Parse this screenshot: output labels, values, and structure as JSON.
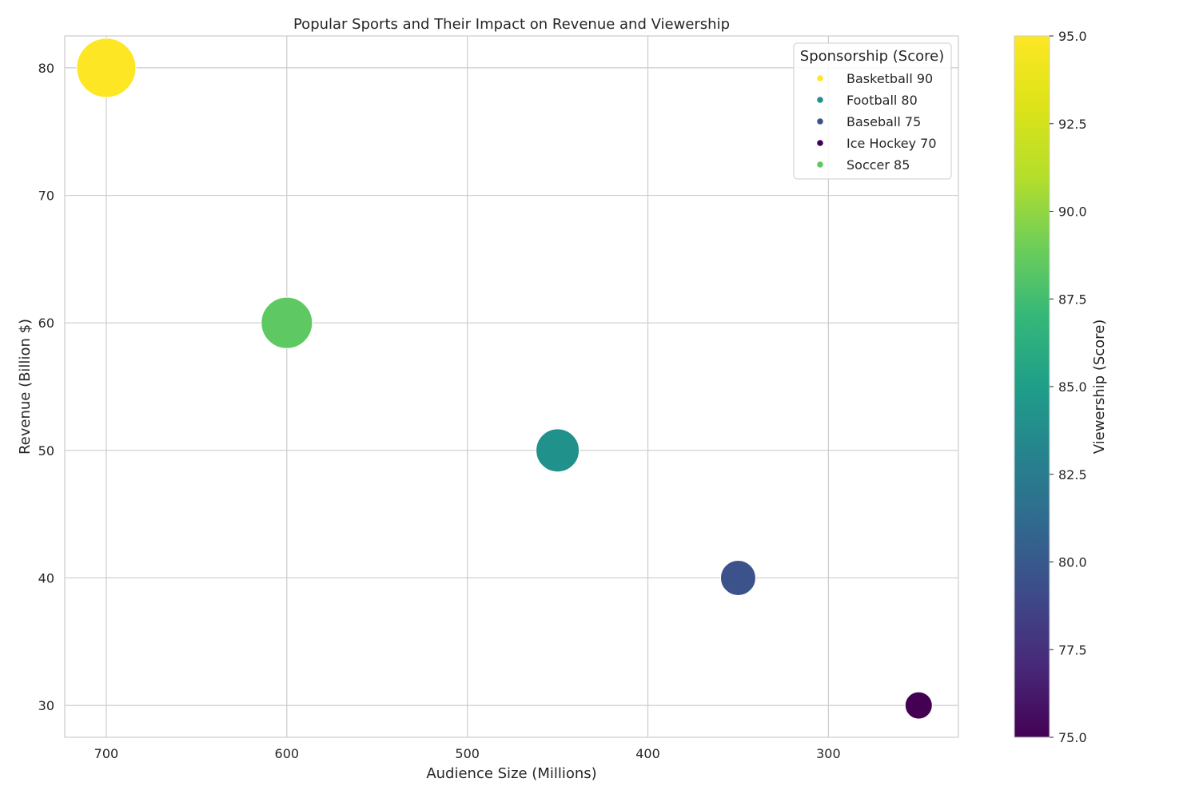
{
  "chart_data": {
    "type": "scatter",
    "title": "Popular Sports and Their Impact on Revenue and Viewership",
    "xlabel": "Audience Size (Millions)",
    "ylabel": "Revenue (Billion $)",
    "xlim": [
      723,
      228
    ],
    "ylim": [
      27.5,
      82.5
    ],
    "x_inverted": true,
    "x_ticks": [
      700,
      600,
      500,
      400,
      300
    ],
    "y_ticks": [
      30,
      40,
      50,
      60,
      70,
      80
    ],
    "grid": true,
    "points": [
      {
        "name": "Basketball",
        "x": 700,
        "y": 80,
        "sponsorship": 90,
        "viewership": 95,
        "color": "#fde725"
      },
      {
        "name": "Football",
        "x": 450,
        "y": 50,
        "sponsorship": 80,
        "viewership": 85,
        "color": "#21918c"
      },
      {
        "name": "Baseball",
        "x": 350,
        "y": 40,
        "sponsorship": 75,
        "viewership": 80,
        "color": "#3b528b"
      },
      {
        "name": "Ice Hockey",
        "x": 250,
        "y": 30,
        "sponsorship": 70,
        "viewership": 75,
        "color": "#440154"
      },
      {
        "name": "Soccer",
        "x": 600,
        "y": 60,
        "sponsorship": 85,
        "viewership": 90,
        "color": "#5ec962"
      }
    ],
    "legend": {
      "title": "Sponsorship (Score)",
      "placement": "top-right",
      "entries": [
        "Basketball 90",
        "Football 80",
        "Baseball 75",
        "Ice Hockey 70",
        "Soccer 85"
      ]
    },
    "colorbar": {
      "label": "Viewership (Score)",
      "colormap": "viridis",
      "range": [
        75,
        95
      ],
      "ticks": [
        "75.0",
        "77.5",
        "80.0",
        "82.5",
        "85.0",
        "87.5",
        "90.0",
        "92.5",
        "95.0"
      ]
    }
  }
}
